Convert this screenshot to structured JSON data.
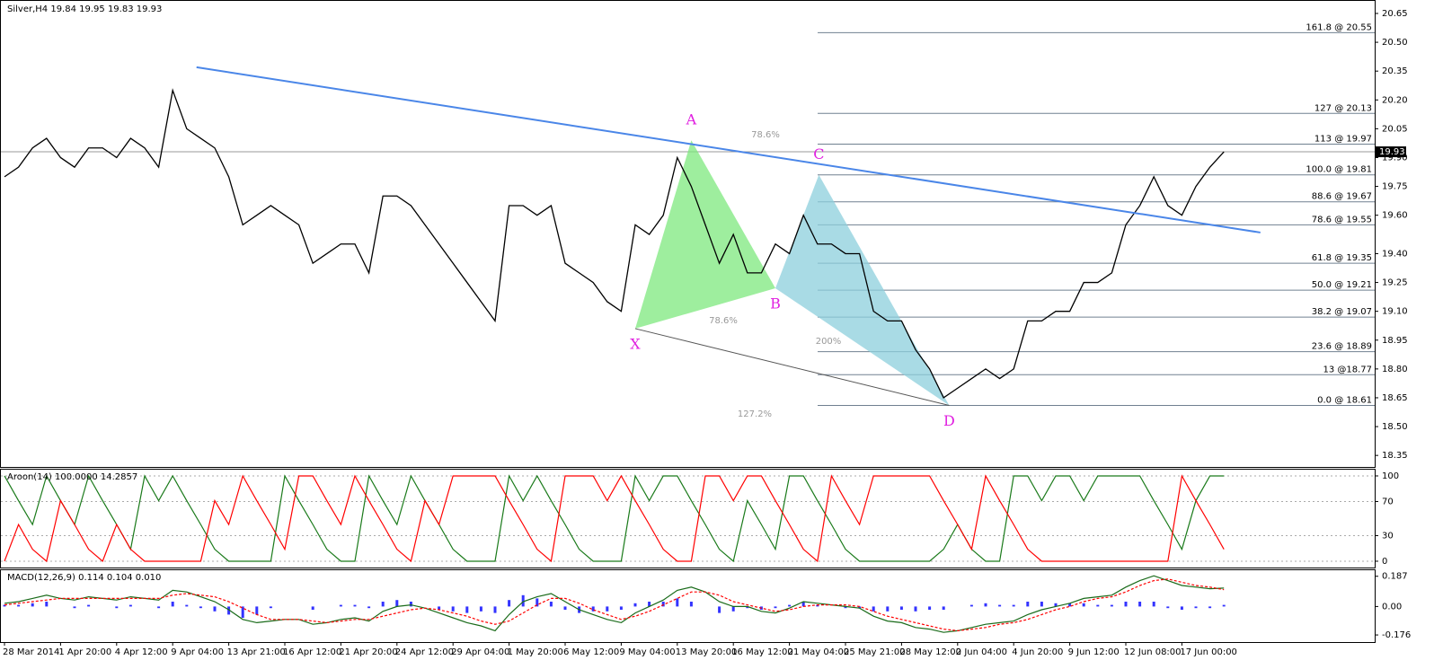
{
  "chart_data": [
    {
      "type": "line",
      "title": "Silver,H4  19.84 19.95 19.83 19.93",
      "categories": [
        "28 Mar 2014",
        null,
        null,
        null,
        "1 Apr 20:00",
        null,
        null,
        null,
        "4 Apr 12:00",
        null,
        null,
        null,
        "9 Apr 04:00",
        null,
        null,
        null,
        "13 Apr 21:00",
        null,
        null,
        null,
        "16 Apr 12:00",
        null,
        null,
        null,
        "21 Apr 20:00",
        null,
        null,
        null,
        "24 Apr 12:00",
        null,
        null,
        null,
        "29 Apr 04:00",
        null,
        null,
        null,
        "1 May 20:00",
        null,
        null,
        null,
        "6 May 12:00",
        null,
        null,
        null,
        "9 May 04:00",
        null,
        null,
        null,
        "13 May 20:00",
        null,
        null,
        null,
        "16 May 12:00",
        null,
        null,
        null,
        "21 May 04:00",
        null,
        null,
        null,
        "25 May 21:00",
        null,
        null,
        null,
        "28 May 12:00",
        null,
        null,
        null,
        "2 Jun 04:00",
        null,
        null,
        null,
        "4 Jun 20:00",
        null,
        null,
        null,
        "9 Jun 12:00",
        null,
        null,
        null,
        "12 Jun 08:00",
        null,
        null,
        null,
        "17 Jun 00:00",
        null,
        null,
        null
      ],
      "series": [
        {
          "color": "#000000",
          "values": [
            19.8,
            19.85,
            19.95,
            20.0,
            19.9,
            19.85,
            19.95,
            19.95,
            19.9,
            20.0,
            19.95,
            19.85,
            20.25,
            20.05,
            20.0,
            19.95,
            19.8,
            19.55,
            19.6,
            19.65,
            19.6,
            19.55,
            19.35,
            19.4,
            19.45,
            19.45,
            19.3,
            19.7,
            19.7,
            19.65,
            19.55,
            19.45,
            19.35,
            19.25,
            19.15,
            19.05,
            19.65,
            19.65,
            19.6,
            19.65,
            19.35,
            19.3,
            19.25,
            19.15,
            19.1,
            19.55,
            19.5,
            19.6,
            19.9,
            19.75,
            19.55,
            19.35,
            19.5,
            19.3,
            19.3,
            19.45,
            19.4,
            19.6,
            19.45,
            19.45,
            19.4,
            19.4,
            19.1,
            19.05,
            19.05,
            18.9,
            18.8,
            18.65,
            18.7,
            18.75,
            18.8,
            18.75,
            18.8,
            19.05,
            19.05,
            19.1,
            19.1,
            19.25,
            19.25,
            19.3,
            19.55,
            19.65,
            19.8,
            19.65,
            19.6,
            19.75,
            19.85,
            19.93
          ]
        }
      ],
      "ylim": [
        18.29,
        20.72
      ],
      "yticks": [
        20.65,
        {
          "value": 20.5,
          "label": "20.50"
        },
        20.35,
        {
          "value": 20.2,
          "label": "20.20"
        },
        20.05,
        {
          "value": 19.9,
          "label": "19.90"
        },
        19.75,
        {
          "value": 19.6,
          "label": "19.60"
        },
        {
          "value": 19.4,
          "label": "19.40"
        },
        19.25,
        {
          "value": 19.1,
          "label": "19.10"
        },
        18.95,
        {
          "value": 18.8,
          "label": "18.80"
        },
        18.65,
        {
          "value": 18.5,
          "label": "18.50"
        },
        18.35
      ],
      "grid": false,
      "last_price": {
        "value": 19.93,
        "label": "19.93"
      },
      "trendline": {
        "color": "#4a86e8",
        "x": [
          13.7,
          89.6
        ],
        "y": [
          20.37,
          19.51
        ]
      },
      "pattern": [
        {
          "label": "X",
          "x": 45.0,
          "y": 19.01
        },
        {
          "label": "A",
          "x": 49.0,
          "y": 19.99
        },
        {
          "label": "B",
          "x": 55.0,
          "y": 19.22
        },
        {
          "label": "C",
          "x": 58.1,
          "y": 19.81
        },
        {
          "label": "D",
          "x": 67.4,
          "y": 18.61
        }
      ],
      "fib_levels": [
        {
          "value": 20.55,
          "label": "161.8 @ 20.55"
        },
        {
          "value": 20.13,
          "label": "127 @ 20.13"
        },
        {
          "value": 19.97,
          "label": "113 @ 19.97"
        },
        {
          "value": 19.81,
          "label": "100.0 @ 19.81"
        },
        {
          "value": 19.67,
          "label": "88.6 @ 19.67"
        },
        {
          "value": 19.55,
          "label": "78.6 @ 19.55"
        },
        {
          "value": 19.35,
          "label": "61.8 @ 19.35"
        },
        {
          "value": 19.21,
          "label": "50.0 @ 19.21"
        },
        {
          "value": 19.07,
          "label": "38.2 @ 19.07"
        },
        {
          "value": 18.89,
          "label": "23.6 @ 18.89"
        },
        {
          "value": 18.77,
          "label": "13 @18.77"
        },
        {
          "value": 18.61,
          "label": "0.0 @ 18.61"
        }
      ],
      "annotations": [
        "78.6%",
        "78.6%",
        "200%",
        "127.2%"
      ]
    },
    {
      "type": "line",
      "title": "Aroon(14) 100.0000 14.2857",
      "series": [
        {
          "color": "#1a7a1a",
          "values": [
            100,
            71,
            43,
            100,
            71,
            43,
            100,
            71,
            43,
            14,
            100,
            71,
            100,
            71,
            43,
            14,
            0,
            0,
            0,
            0,
            100,
            71,
            43,
            14,
            0,
            0,
            100,
            71,
            43,
            100,
            71,
            43,
            14,
            0,
            0,
            0,
            100,
            71,
            100,
            71,
            43,
            14,
            0,
            0,
            0,
            100,
            71,
            100,
            100,
            71,
            43,
            14,
            0,
            71,
            43,
            14,
            100,
            100,
            71,
            43,
            14,
            0,
            0,
            0,
            0,
            0,
            0,
            14,
            43,
            14,
            0,
            0,
            100,
            100,
            71,
            100,
            100,
            71,
            100,
            100,
            100,
            100,
            71,
            43,
            14,
            71,
            100,
            100
          ]
        },
        {
          "color": "#ff0000",
          "values": [
            0,
            43,
            14,
            0,
            71,
            43,
            14,
            0,
            43,
            14,
            0,
            0,
            0,
            0,
            0,
            71,
            43,
            100,
            71,
            43,
            14,
            100,
            100,
            71,
            43,
            100,
            71,
            43,
            14,
            0,
            71,
            43,
            100,
            100,
            100,
            100,
            71,
            43,
            14,
            0,
            100,
            100,
            100,
            71,
            100,
            71,
            43,
            14,
            0,
            0,
            100,
            100,
            71,
            100,
            100,
            71,
            43,
            14,
            0,
            100,
            71,
            43,
            100,
            100,
            100,
            100,
            100,
            71,
            43,
            14,
            100,
            71,
            43,
            14,
            0,
            0,
            0,
            0,
            0,
            0,
            0,
            0,
            0,
            0,
            100,
            71,
            43,
            14
          ]
        }
      ],
      "ylim": [
        -7.4,
        108.4
      ],
      "yticks": [
        100,
        70,
        30,
        0
      ],
      "grid": true
    },
    {
      "type": "line",
      "title": "MACD(12,26,9) 0.114 0.104 0.010",
      "series": [
        {
          "color": "#3333ff",
          "style": "histogram",
          "values": [
            0.01,
            0.01,
            0.02,
            0.03,
            0.0,
            -0.01,
            0.01,
            0.0,
            -0.01,
            0.01,
            0.0,
            -0.01,
            0.03,
            0.01,
            -0.01,
            -0.03,
            -0.05,
            -0.07,
            -0.05,
            -0.01,
            0.0,
            0.0,
            -0.02,
            0.0,
            0.01,
            0.01,
            -0.01,
            0.03,
            0.04,
            0.03,
            0.0,
            -0.02,
            -0.03,
            -0.04,
            -0.03,
            -0.04,
            0.04,
            0.07,
            0.05,
            0.03,
            -0.02,
            -0.04,
            -0.03,
            -0.03,
            -0.02,
            0.02,
            0.03,
            0.03,
            0.05,
            0.03,
            0.0,
            -0.04,
            -0.03,
            -0.01,
            -0.02,
            -0.01,
            0.01,
            0.03,
            0.01,
            0.0,
            -0.01,
            -0.01,
            -0.03,
            -0.03,
            -0.02,
            -0.03,
            -0.02,
            -0.02,
            0.0,
            0.01,
            0.02,
            0.01,
            0.01,
            0.03,
            0.03,
            0.02,
            0.02,
            0.02,
            0.01,
            0.01,
            0.03,
            0.03,
            0.03,
            -0.01,
            -0.02,
            -0.01,
            -0.01,
            0.01
          ]
        },
        {
          "color": "#1a6b1a",
          "style": "solid",
          "values": [
            0.02,
            0.03,
            0.05,
            0.07,
            0.05,
            0.04,
            0.06,
            0.05,
            0.04,
            0.06,
            0.05,
            0.04,
            0.1,
            0.09,
            0.06,
            0.03,
            -0.02,
            -0.08,
            -0.1,
            -0.09,
            -0.08,
            -0.08,
            -0.11,
            -0.1,
            -0.08,
            -0.07,
            -0.09,
            -0.03,
            0.0,
            0.01,
            -0.01,
            -0.04,
            -0.07,
            -0.1,
            -0.12,
            -0.15,
            -0.05,
            0.03,
            0.06,
            0.08,
            0.03,
            -0.02,
            -0.05,
            -0.08,
            -0.1,
            -0.04,
            0.0,
            0.04,
            0.1,
            0.12,
            0.09,
            0.03,
            0.0,
            0.0,
            -0.03,
            -0.04,
            -0.01,
            0.03,
            0.02,
            0.01,
            0.0,
            -0.01,
            -0.06,
            -0.09,
            -0.1,
            -0.13,
            -0.14,
            -0.16,
            -0.15,
            -0.13,
            -0.11,
            -0.1,
            -0.09,
            -0.05,
            -0.02,
            0.0,
            0.02,
            0.05,
            0.06,
            0.07,
            0.12,
            0.16,
            0.19,
            0.16,
            0.13,
            0.12,
            0.11,
            0.114
          ]
        },
        {
          "color": "#ff0000",
          "style": "dashed",
          "values": [
            0.01,
            0.02,
            0.03,
            0.04,
            0.05,
            0.05,
            0.05,
            0.05,
            0.05,
            0.05,
            0.05,
            0.05,
            0.07,
            0.08,
            0.07,
            0.06,
            0.03,
            -0.01,
            -0.05,
            -0.08,
            -0.08,
            -0.08,
            -0.09,
            -0.1,
            -0.09,
            -0.08,
            -0.08,
            -0.06,
            -0.04,
            -0.02,
            -0.01,
            -0.02,
            -0.04,
            -0.06,
            -0.09,
            -0.11,
            -0.09,
            -0.04,
            0.01,
            0.05,
            0.05,
            0.02,
            -0.02,
            -0.05,
            -0.08,
            -0.06,
            -0.03,
            0.01,
            0.05,
            0.09,
            0.09,
            0.07,
            0.03,
            0.01,
            -0.01,
            -0.03,
            -0.02,
            0.0,
            0.01,
            0.01,
            0.01,
            0.0,
            -0.03,
            -0.06,
            -0.08,
            -0.1,
            -0.12,
            -0.14,
            -0.15,
            -0.14,
            -0.13,
            -0.11,
            -0.1,
            -0.08,
            -0.05,
            -0.02,
            0.0,
            0.03,
            0.05,
            0.06,
            0.09,
            0.13,
            0.16,
            0.17,
            0.15,
            0.13,
            0.12,
            0.104
          ]
        }
      ],
      "ylim": [
        -0.22,
        0.23
      ],
      "yticks": [
        0.187,
        {
          "value": 0,
          "label": "0.00"
        },
        -0.176
      ],
      "grid": false
    }
  ]
}
